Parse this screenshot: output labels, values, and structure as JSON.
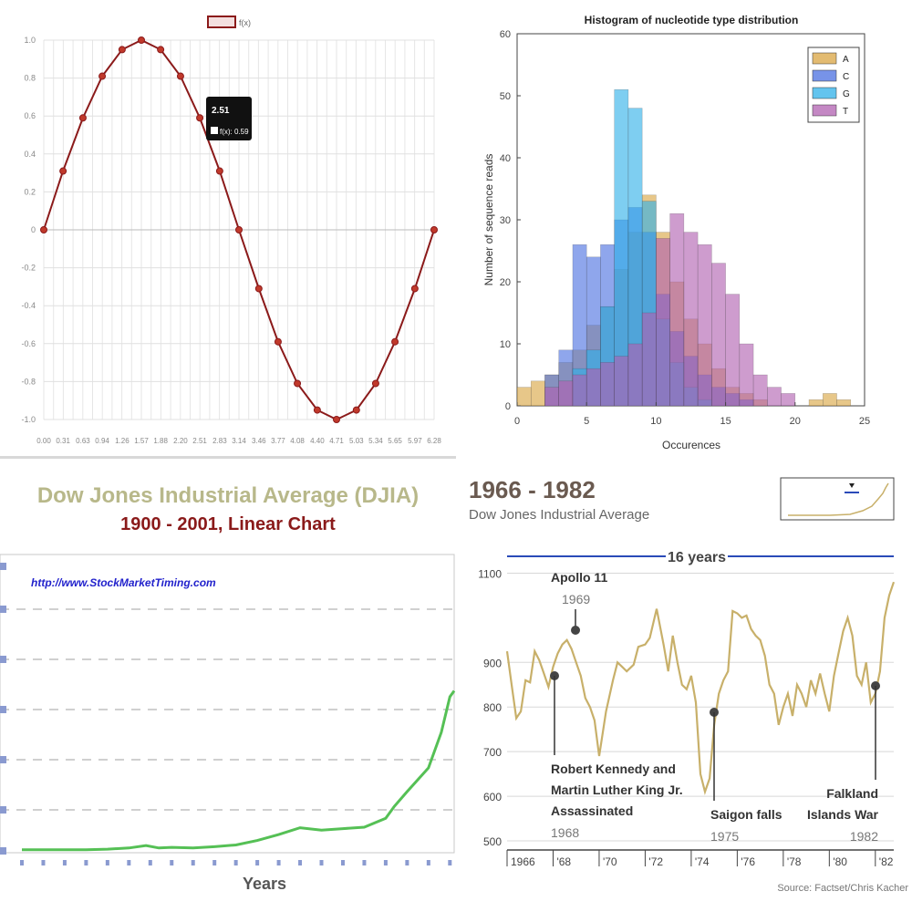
{
  "chart_data": [
    {
      "type": "line",
      "series": [
        {
          "name": "f(x)",
          "color": "#8b1a1a",
          "x": [
            0.0,
            0.31,
            0.63,
            0.94,
            1.26,
            1.57,
            1.88,
            2.2,
            2.51,
            2.83,
            3.14,
            3.46,
            3.77,
            4.08,
            4.4,
            4.71,
            5.03,
            5.34,
            5.65,
            5.97,
            6.28
          ],
          "y": [
            0.0,
            0.31,
            0.59,
            0.81,
            0.95,
            1.0,
            0.95,
            0.81,
            0.59,
            0.31,
            0.0,
            -0.31,
            -0.59,
            -0.81,
            -0.95,
            -1.0,
            -0.95,
            -0.81,
            -0.59,
            -0.31,
            0.0
          ]
        }
      ],
      "xtick_labels": [
        "0.00",
        "0.31",
        "0.63",
        "0.94",
        "1.26",
        "1.57",
        "1.88",
        "2.20",
        "2.51",
        "2.83",
        "3.14",
        "3.46",
        "3.77",
        "4.08",
        "4.40",
        "4.71",
        "5.03",
        "5.34",
        "5.65",
        "5.97",
        "6.28"
      ],
      "ytick_labels": [
        "1.0",
        "0.8",
        "0.6",
        "0.4",
        "0.2",
        "0",
        "-0.2",
        "-0.4",
        "-0.6",
        "-0.8",
        "-1.0"
      ],
      "ylim": [
        -1,
        1
      ],
      "legend": "top-center",
      "grid": true,
      "tooltip": {
        "title": "2.51",
        "text": "f(x): 0.59"
      }
    },
    {
      "type": "bar",
      "subtype": "overlapping-histogram",
      "title": "Histogram of nucleotide type distribution",
      "xlabel": "Occurences",
      "ylabel": "Number of sequence reads",
      "xlim": [
        0,
        25
      ],
      "ylim": [
        0,
        60
      ],
      "xticks": [
        "0",
        "5",
        "10",
        "15",
        "20",
        "25"
      ],
      "yticks": [
        "0",
        "10",
        "20",
        "30",
        "40",
        "50",
        "60"
      ],
      "bin_width": 1,
      "bin_starts": [
        0,
        1,
        2,
        3,
        4,
        5,
        6,
        7,
        8,
        9,
        10,
        11,
        12,
        13,
        14,
        15,
        16,
        17,
        18,
        19,
        20,
        21,
        22,
        23,
        24
      ],
      "legend": "top-right",
      "series": [
        {
          "name": "A",
          "color": "#d9a441",
          "values": [
            3,
            4,
            5,
            7,
            9,
            13,
            16,
            22,
            28,
            34,
            28,
            20,
            14,
            10,
            6,
            3,
            2,
            1,
            0,
            0,
            0,
            1,
            2,
            1,
            0
          ]
        },
        {
          "name": "C",
          "color": "#4a6fe0",
          "values": [
            0,
            0,
            5,
            9,
            26,
            24,
            26,
            30,
            32,
            28,
            18,
            12,
            8,
            5,
            3,
            2,
            1,
            0,
            0,
            0,
            0,
            0,
            0,
            0,
            0
          ]
        },
        {
          "name": "G",
          "color": "#2fb0e8",
          "values": [
            0,
            0,
            0,
            0,
            6,
            9,
            16,
            51,
            48,
            33,
            14,
            7,
            3,
            1,
            0,
            0,
            0,
            0,
            0,
            0,
            0,
            0,
            0,
            0,
            0
          ]
        },
        {
          "name": "T",
          "color": "#b060b0",
          "values": [
            0,
            0,
            3,
            4,
            5,
            6,
            7,
            8,
            10,
            15,
            27,
            31,
            28,
            26,
            23,
            18,
            10,
            5,
            3,
            2,
            0,
            0,
            0,
            0,
            0
          ]
        }
      ]
    },
    {
      "type": "line",
      "title": "Dow Jones Industrial Average (DJIA)",
      "subtitle": "1900 - 2001, Linear Chart",
      "url_text": "http://www.StockMarketTiming.com",
      "xlabel": "Years",
      "color": "#55c055",
      "x": [
        1900,
        1905,
        1910,
        1915,
        1920,
        1925,
        1929,
        1932,
        1935,
        1940,
        1945,
        1950,
        1955,
        1960,
        1965,
        1970,
        1975,
        1980,
        1985,
        1987,
        1990,
        1995,
        1998,
        2000,
        2001
      ],
      "y": [
        0.4,
        0.4,
        0.4,
        0.4,
        0.6,
        1.0,
        1.8,
        1.0,
        1.2,
        1.0,
        1.4,
        2.0,
        3.5,
        5.5,
        7.8,
        7.0,
        7.5,
        8.0,
        11.0,
        15.0,
        20.0,
        28.0,
        40.0,
        52.0,
        54.0
      ],
      "ylim": [
        0,
        100
      ]
    },
    {
      "type": "line",
      "title": "1966 - 1982",
      "subtitle": "Dow Jones Industrial Average",
      "span_label": "16 years",
      "source": "Source: Factset/Chris Kacher",
      "color": "#c8b06a",
      "ylim": [
        500,
        1150
      ],
      "yticks": [
        "1100",
        "900",
        "800",
        "700",
        "600",
        "500"
      ],
      "ytick_values": [
        1100,
        900,
        800,
        700,
        600,
        500
      ],
      "xticks": [
        "1966",
        "'68",
        "'70",
        "'72",
        "'74",
        "'76",
        "'78",
        "'80",
        "'82"
      ],
      "xtick_values": [
        1966,
        1968,
        1970,
        1972,
        1974,
        1976,
        1978,
        1980,
        1982
      ],
      "x": [
        1966.0,
        1966.2,
        1966.4,
        1966.6,
        1966.8,
        1967.0,
        1967.2,
        1967.4,
        1967.6,
        1967.8,
        1968.0,
        1968.2,
        1968.4,
        1968.6,
        1968.8,
        1969.0,
        1969.2,
        1969.4,
        1969.6,
        1969.8,
        1970.0,
        1970.3,
        1970.6,
        1970.8,
        1971.0,
        1971.2,
        1971.5,
        1971.7,
        1972.0,
        1972.2,
        1972.5,
        1972.8,
        1973.0,
        1973.2,
        1973.4,
        1973.6,
        1973.8,
        1974.0,
        1974.2,
        1974.4,
        1974.6,
        1974.8,
        1975.0,
        1975.2,
        1975.4,
        1975.6,
        1975.8,
        1976.0,
        1976.2,
        1976.4,
        1976.6,
        1976.8,
        1977.0,
        1977.2,
        1977.4,
        1977.6,
        1977.8,
        1978.0,
        1978.2,
        1978.4,
        1978.6,
        1978.8,
        1979.0,
        1979.2,
        1979.4,
        1979.6,
        1979.8,
        1980.0,
        1980.2,
        1980.4,
        1980.6,
        1980.8,
        1981.0,
        1981.2,
        1981.4,
        1981.6,
        1981.8,
        1982.0,
        1982.2,
        1982.4,
        1982.6,
        1982.8
      ],
      "y": [
        925,
        850,
        775,
        790,
        860,
        855,
        925,
        905,
        875,
        845,
        890,
        920,
        940,
        950,
        930,
        900,
        870,
        820,
        800,
        770,
        690,
        790,
        860,
        900,
        890,
        880,
        895,
        935,
        940,
        955,
        1020,
        940,
        880,
        960,
        900,
        850,
        840,
        870,
        810,
        650,
        610,
        640,
        760,
        830,
        860,
        880,
        1015,
        1010,
        1000,
        1005,
        975,
        960,
        950,
        915,
        850,
        830,
        760,
        800,
        830,
        780,
        850,
        830,
        800,
        860,
        830,
        875,
        830,
        790,
        870,
        920,
        970,
        1000,
        960,
        870,
        850,
        900,
        810,
        830,
        880,
        1000,
        1050,
        1080
      ],
      "annotations": [
        {
          "label": "Apollo 11",
          "year": "1969"
        },
        {
          "label": "Robert Kennedy and Martin Luther King Jr. Assassinated",
          "lines": [
            "Robert Kennedy and",
            "Martin Luther King Jr.",
            "Assassinated"
          ],
          "year": "1968"
        },
        {
          "label": "Saigon falls",
          "year": "1975"
        },
        {
          "label": "Falkland Islands War",
          "lines": [
            "Falkland",
            "Islands War"
          ],
          "year": "1982"
        }
      ]
    }
  ]
}
